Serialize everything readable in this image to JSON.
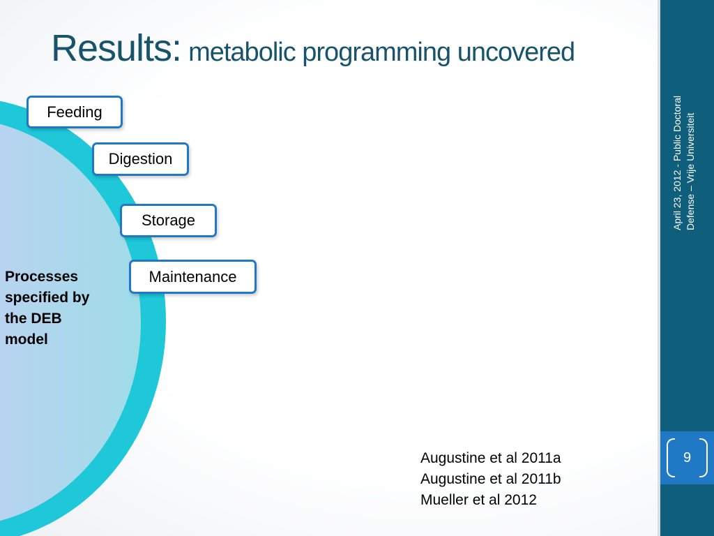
{
  "slide": {
    "title_main": "Results:",
    "title_sub": "metabolic programming uncovered"
  },
  "process_boxes": {
    "feeding": "Feeding",
    "digestion": "Digestion",
    "storage": "Storage",
    "maintenance": "Maintenance"
  },
  "processes_caption": [
    "Processes",
    "specified by",
    "the DEB",
    "model"
  ],
  "references": [
    "Augustine et al 2011a",
    "Augustine et al 2011b",
    "Mueller et al 2012"
  ],
  "footer": {
    "line1": "April 23, 2012 -  Public Doctoral",
    "line2": "Defense – Vrije Universiteit"
  },
  "page_number": "9",
  "colors": {
    "title": "#17536b",
    "sidebar": "#0f5e7c",
    "page_badge": "#1f79c4",
    "box_border": "#1f78c8",
    "arc_ring": "#1ec8d8"
  }
}
